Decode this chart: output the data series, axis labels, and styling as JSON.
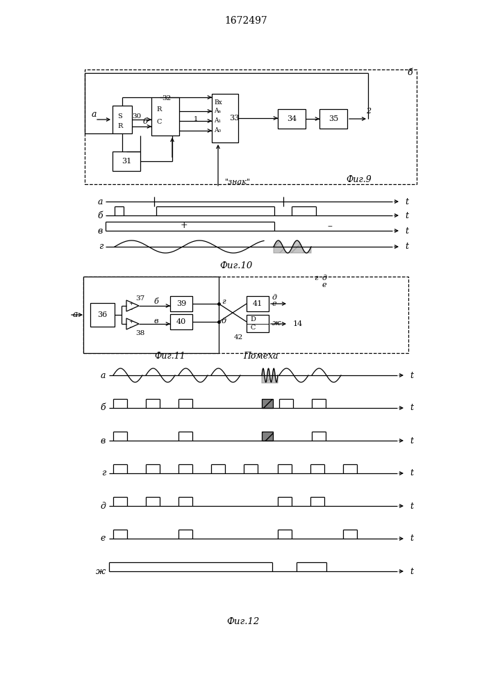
{
  "title": "1672497",
  "bg": "#ffffff",
  "fig9_label": "Фиг.9",
  "fig10_label": "Фиг.10",
  "fig11_label": "Фиг.11",
  "fig12_label": "Фиг.12",
  "noise_label": "Помеха",
  "znak_label": "\"знак\""
}
